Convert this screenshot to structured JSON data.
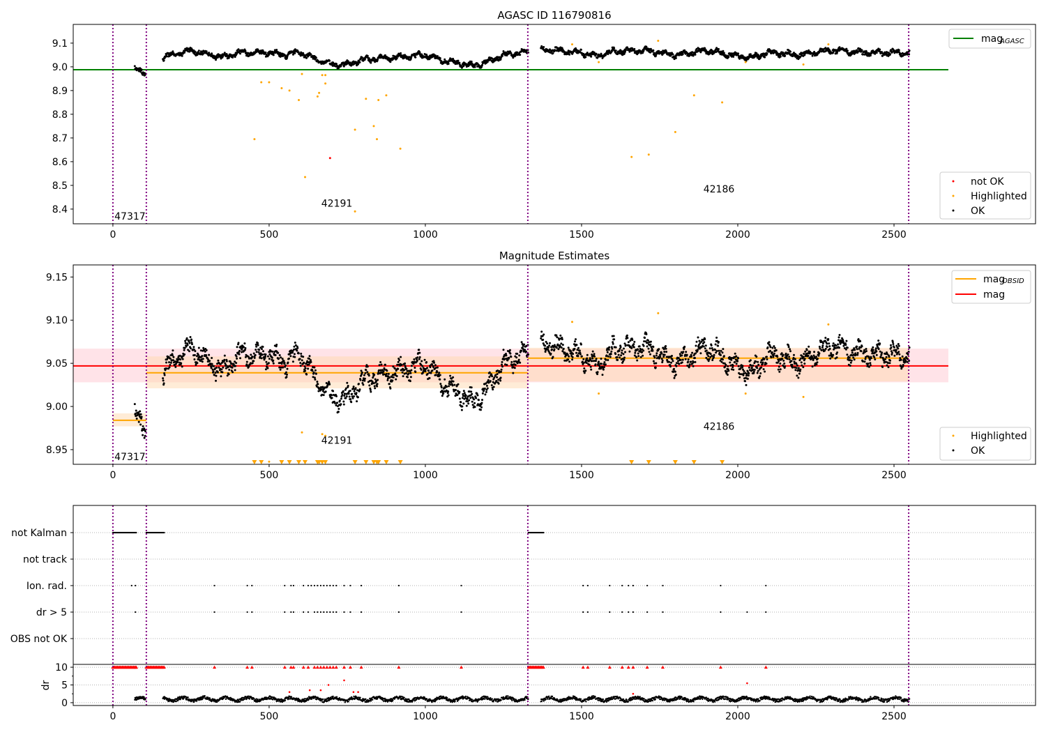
{
  "colors": {
    "ok": "#000000",
    "highlighted": "#ffa500",
    "not_ok": "#ff0000",
    "agasc": "#008000",
    "mag": "#ff0000",
    "mag_obsid": "#ffa500",
    "vline": "#800080",
    "band_mag": "#ffc0cb",
    "band_obsid": "#ffdab0"
  },
  "chart_data": [
    {
      "type": "scatter",
      "title": "AGASC ID 116790816",
      "xlim": [
        -127,
        2953
      ],
      "ylim": [
        8.338,
        9.179
      ],
      "xticks": [
        "0",
        "500",
        "1000",
        "1500",
        "2000",
        "2500"
      ],
      "xtick_values": [
        0,
        500,
        1000,
        1500,
        2000,
        2500
      ],
      "yticks": [
        "8.4",
        "8.5",
        "8.6",
        "8.7",
        "8.8",
        "8.9",
        "9.0",
        "9.1"
      ],
      "ytick_values": [
        8.4,
        8.5,
        8.6,
        8.7,
        8.8,
        8.9,
        9.0,
        9.1
      ],
      "vlines": [
        0,
        107,
        1328,
        2547
      ],
      "agasc_mag": 8.988,
      "agasc_line_xmax": 2674,
      "legend_line": {
        "label": "mag",
        "sub": "AGASC"
      },
      "legend_points": [
        "not OK",
        "Highlighted",
        "OK"
      ],
      "obsid_labels": [
        {
          "text": "47317",
          "x": 5,
          "y": 8.355
        },
        {
          "text": "42191",
          "x": 667,
          "y": 8.41
        },
        {
          "text": "42186",
          "x": 1890,
          "y": 8.47
        }
      ],
      "ok_trend": [
        [
          [
            70,
            8.99
          ],
          [
            105,
            8.98
          ]
        ],
        [
          [
            160,
            9.04
          ],
          [
            250,
            9.07
          ],
          [
            350,
            9.04
          ],
          [
            400,
            9.06
          ],
          [
            500,
            9.06
          ],
          [
            550,
            9.05
          ],
          [
            600,
            9.06
          ],
          [
            650,
            9.03
          ],
          [
            700,
            9.01
          ],
          [
            750,
            9.01
          ],
          [
            800,
            9.03
          ],
          [
            900,
            9.04
          ],
          [
            1000,
            9.05
          ],
          [
            1050,
            9.03
          ],
          [
            1150,
            9.005
          ],
          [
            1200,
            9.02
          ],
          [
            1250,
            9.05
          ],
          [
            1330,
            9.065
          ]
        ],
        [
          [
            1370,
            9.075
          ],
          [
            1500,
            9.06
          ],
          [
            1550,
            9.045
          ],
          [
            1600,
            9.065
          ],
          [
            1700,
            9.07
          ],
          [
            1800,
            9.05
          ],
          [
            1900,
            9.07
          ],
          [
            2000,
            9.045
          ],
          [
            2050,
            9.04
          ],
          [
            2100,
            9.06
          ],
          [
            2200,
            9.05
          ],
          [
            2300,
            9.07
          ],
          [
            2400,
            9.06
          ],
          [
            2550,
            9.06
          ]
        ]
      ],
      "highlighted": [
        [
          453,
          8.695
        ],
        [
          475,
          8.935
        ],
        [
          500,
          8.935
        ],
        [
          540,
          8.91
        ],
        [
          565,
          8.9
        ],
        [
          595,
          8.86
        ],
        [
          605,
          8.97
        ],
        [
          615,
          8.535
        ],
        [
          655,
          8.875
        ],
        [
          660,
          8.89
        ],
        [
          670,
          8.965
        ],
        [
          680,
          8.965
        ],
        [
          680,
          8.93
        ],
        [
          775,
          8.39
        ],
        [
          775,
          8.735
        ],
        [
          810,
          8.865
        ],
        [
          835,
          8.75
        ],
        [
          845,
          8.695
        ],
        [
          850,
          8.86
        ],
        [
          875,
          8.88
        ],
        [
          920,
          8.655
        ],
        [
          1470,
          9.095
        ],
        [
          1555,
          9.02
        ],
        [
          1660,
          8.62
        ],
        [
          1715,
          8.63
        ],
        [
          1745,
          9.11
        ],
        [
          1800,
          8.725
        ],
        [
          1860,
          8.88
        ],
        [
          1950,
          8.85
        ],
        [
          2025,
          9.02
        ],
        [
          2210,
          9.01
        ],
        [
          2290,
          9.095
        ]
      ],
      "not_ok": [
        [
          695,
          8.615
        ]
      ]
    },
    {
      "type": "scatter",
      "title": "Magnitude Estimates",
      "xlim": [
        -127,
        2953
      ],
      "ylim": [
        8.933,
        9.164
      ],
      "xticks": [
        "0",
        "500",
        "1000",
        "1500",
        "2000",
        "2500"
      ],
      "xtick_values": [
        0,
        500,
        1000,
        1500,
        2000,
        2500
      ],
      "yticks": [
        "8.95",
        "9.00",
        "9.05",
        "9.10",
        "9.15"
      ],
      "ytick_values": [
        8.95,
        9.0,
        9.05,
        9.1,
        9.15
      ],
      "vlines": [
        0,
        107,
        1328,
        2547
      ],
      "mag": {
        "value": 9.047,
        "low": 9.028,
        "high": 9.067,
        "xmax": 2674
      },
      "mag_obsid": [
        {
          "obsid": "47317",
          "x0": 0,
          "x1": 107,
          "value": 8.984,
          "low": 8.977,
          "high": 8.992
        },
        {
          "obsid": "42191",
          "x0": 107,
          "x1": 1328,
          "value": 9.039,
          "low": 9.021,
          "high": 9.058
        },
        {
          "obsid": "42186",
          "x0": 1328,
          "x1": 2547,
          "value": 9.056,
          "low": 9.029,
          "high": 9.068
        }
      ],
      "legend_lines": [
        {
          "label": "mag",
          "sub": "OBSID"
        },
        {
          "label": "mag",
          "sub": ""
        }
      ],
      "legend_points": [
        "Highlighted",
        "OK"
      ],
      "obsid_labels": [
        {
          "text": "47317",
          "x": 5,
          "y": 8.938
        },
        {
          "text": "42191",
          "x": 667,
          "y": 8.957
        },
        {
          "text": "42186",
          "x": 1890,
          "y": 8.973
        }
      ],
      "highlighted_in_range": [
        [
          605,
          8.97
        ],
        [
          670,
          8.968
        ],
        [
          680,
          8.966
        ],
        [
          500,
          8.936
        ],
        [
          1470,
          9.098
        ],
        [
          1555,
          9.015
        ],
        [
          1745,
          9.108
        ],
        [
          2025,
          9.015
        ],
        [
          2210,
          9.011
        ],
        [
          2290,
          9.095
        ]
      ],
      "highlighted_below_range_x": [
        453,
        475,
        540,
        565,
        595,
        615,
        655,
        660,
        670,
        680,
        775,
        810,
        835,
        845,
        850,
        875,
        920,
        1660,
        1715,
        1800,
        1860,
        1950
      ]
    },
    {
      "type": "scatter",
      "title": "",
      "xlim": [
        -127,
        2953
      ],
      "xticks": [
        "0",
        "500",
        "1000",
        "1500",
        "2000",
        "2500"
      ],
      "xtick_values": [
        0,
        500,
        1000,
        1500,
        2000,
        2500
      ],
      "vlines": [
        0,
        107,
        1328,
        2547
      ],
      "flag_rows": [
        "not Kalman",
        "not track",
        "Ion. rad.",
        "dr > 5",
        "OBS not OK"
      ],
      "flags": {
        "not Kalman": {
          "ranges": [
            [
              0,
              75
            ],
            [
              107,
              165
            ],
            [
              1330,
              1380
            ]
          ],
          "x": []
        },
        "not track": {
          "ranges": [],
          "x": []
        },
        "Ion. rad.": {
          "ranges": [],
          "x": [
            60,
            72,
            325,
            430,
            445,
            550,
            570,
            578,
            610,
            625,
            635,
            645,
            655,
            665,
            675,
            685,
            695,
            705,
            715,
            740,
            760,
            795,
            915,
            1115,
            1505,
            1520,
            1590,
            1630,
            1650,
            1665,
            1710,
            1760,
            1945,
            2090
          ]
        },
        "dr > 5": {
          "ranges": [],
          "x": [
            72,
            325,
            430,
            445,
            550,
            570,
            578,
            610,
            625,
            645,
            655,
            665,
            675,
            685,
            695,
            705,
            715,
            740,
            760,
            795,
            915,
            1115,
            1505,
            1520,
            1590,
            1630,
            1650,
            1665,
            1710,
            1760,
            1945,
            2030,
            2090
          ]
        },
        "OBS not OK": {
          "ranges": [],
          "x": []
        }
      },
      "dr": {
        "ylabel": "dr",
        "ylim": [
          -0.8,
          10.8
        ],
        "yticks": [
          "0",
          "5",
          "10"
        ],
        "ytick_values": [
          0,
          5,
          10
        ],
        "clip_value": 10,
        "ok_segments": [
          [
            70,
            105
          ],
          [
            160,
            1330
          ],
          [
            1370,
            2550
          ]
        ],
        "typical": 1.0,
        "outliers": [
          [
            565,
            3.0
          ],
          [
            630,
            3.5
          ],
          [
            665,
            3.5
          ],
          [
            690,
            5.0
          ],
          [
            740,
            6.3
          ],
          [
            770,
            3.0
          ],
          [
            785,
            3.0
          ],
          [
            1665,
            2.5
          ],
          [
            2030,
            5.5
          ]
        ]
      }
    }
  ]
}
